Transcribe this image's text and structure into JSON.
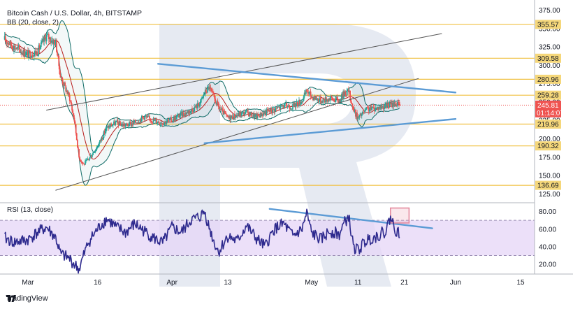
{
  "chart_data": [
    {
      "type": "candlestick",
      "title": "Bitcoin Cash / U.S. Dollar, 4h, BITSTAMP",
      "indicator_label": "BB (20, close, 2)",
      "y_ticks": [
        125.0,
        150.0,
        175.0,
        200.0,
        225.0,
        250.0,
        275.0,
        300.0,
        325.0,
        350.0,
        375.0
      ],
      "ylim": [
        113,
        385
      ],
      "x_ticks": [
        "Mar",
        "16",
        "Apr",
        "13",
        "May",
        "11",
        "21",
        "Jun",
        "15"
      ],
      "levels": [
        355.57,
        309.58,
        280.96,
        259.28,
        219.96,
        190.32,
        136.69
      ],
      "current_price": 245.81,
      "countdown": "01:14:07",
      "trendlines": [
        {
          "name": "channel upper",
          "from": [
            "Mar 5",
            239
          ],
          "to": [
            "May 29",
            343
          ]
        },
        {
          "name": "channel lower",
          "from": [
            "Mar 7",
            130
          ],
          "to": [
            "May 24",
            282
          ]
        },
        {
          "name": "triangle upper",
          "from": [
            "Mar 29",
            302
          ],
          "to": [
            "Jun 1",
            263
          ]
        },
        {
          "name": "triangle lower",
          "from": [
            "Apr 8",
            194
          ],
          "to": [
            "Jun 1",
            227
          ]
        }
      ],
      "close_series": [
        {
          "date": "Feb 25",
          "value": 335
        },
        {
          "date": "Feb 27",
          "value": 325
        },
        {
          "date": "Mar 1",
          "value": 315
        },
        {
          "date": "Mar 3",
          "value": 318
        },
        {
          "date": "Mar 5",
          "value": 340
        },
        {
          "date": "Mar 7",
          "value": 330
        },
        {
          "date": "Mar 8",
          "value": 285
        },
        {
          "date": "Mar 10",
          "value": 255
        },
        {
          "date": "Mar 11",
          "value": 225
        },
        {
          "date": "Mar 12",
          "value": 175
        },
        {
          "date": "Mar 13",
          "value": 165
        },
        {
          "date": "Mar 14",
          "value": 172
        },
        {
          "date": "Mar 16",
          "value": 190
        },
        {
          "date": "Mar 18",
          "value": 215
        },
        {
          "date": "Mar 20",
          "value": 222
        },
        {
          "date": "Mar 22",
          "value": 218
        },
        {
          "date": "Mar 24",
          "value": 222
        },
        {
          "date": "Mar 26",
          "value": 230
        },
        {
          "date": "Mar 28",
          "value": 225
        },
        {
          "date": "Mar 30",
          "value": 222
        },
        {
          "date": "Apr 1",
          "value": 226
        },
        {
          "date": "Apr 3",
          "value": 233
        },
        {
          "date": "Apr 5",
          "value": 238
        },
        {
          "date": "Apr 7",
          "value": 248
        },
        {
          "date": "Apr 8",
          "value": 262
        },
        {
          "date": "Apr 9",
          "value": 270
        },
        {
          "date": "Apr 10",
          "value": 256
        },
        {
          "date": "Apr 11",
          "value": 243
        },
        {
          "date": "Apr 13",
          "value": 228
        },
        {
          "date": "Apr 15",
          "value": 232
        },
        {
          "date": "Apr 17",
          "value": 236
        },
        {
          "date": "Apr 19",
          "value": 230
        },
        {
          "date": "Apr 21",
          "value": 236
        },
        {
          "date": "Apr 23",
          "value": 240
        },
        {
          "date": "Apr 25",
          "value": 245
        },
        {
          "date": "Apr 27",
          "value": 244
        },
        {
          "date": "Apr 29",
          "value": 252
        },
        {
          "date": "Apr 30",
          "value": 265
        },
        {
          "date": "May 1",
          "value": 258
        },
        {
          "date": "May 3",
          "value": 252
        },
        {
          "date": "May 5",
          "value": 255
        },
        {
          "date": "May 7",
          "value": 252
        },
        {
          "date": "May 8",
          "value": 262
        },
        {
          "date": "May 9",
          "value": 265
        },
        {
          "date": "May 10",
          "value": 240
        },
        {
          "date": "May 11",
          "value": 228
        },
        {
          "date": "May 13",
          "value": 240
        },
        {
          "date": "May 15",
          "value": 242
        },
        {
          "date": "May 17",
          "value": 245
        },
        {
          "date": "May 19",
          "value": 248
        },
        {
          "date": "May 20",
          "value": 245.81
        }
      ]
    },
    {
      "type": "line",
      "title": "RSI (13, close)",
      "y_ticks": [
        20.0,
        40.0,
        60.0,
        80.0
      ],
      "ylim": [
        9,
        90
      ],
      "bands": [
        30,
        70
      ],
      "trendline": {
        "from": [
          "Apr 22",
          83
        ],
        "to": [
          "May 27",
          61
        ]
      },
      "highlight": {
        "from": "May 18",
        "to": "May 22",
        "low": 67,
        "high": 84
      },
      "series": [
        {
          "date": "Feb 25",
          "value": 50
        },
        {
          "date": "Feb 27",
          "value": 45
        },
        {
          "date": "Mar 1",
          "value": 48
        },
        {
          "date": "Mar 3",
          "value": 56
        },
        {
          "date": "Mar 5",
          "value": 62
        },
        {
          "date": "Mar 7",
          "value": 50
        },
        {
          "date": "Mar 8",
          "value": 32
        },
        {
          "date": "Mar 10",
          "value": 26
        },
        {
          "date": "Mar 11",
          "value": 20
        },
        {
          "date": "Mar 12",
          "value": 14
        },
        {
          "date": "Mar 13",
          "value": 30
        },
        {
          "date": "Mar 14",
          "value": 45
        },
        {
          "date": "Mar 16",
          "value": 60
        },
        {
          "date": "Mar 18",
          "value": 72
        },
        {
          "date": "Mar 20",
          "value": 62
        },
        {
          "date": "Mar 22",
          "value": 56
        },
        {
          "date": "Mar 24",
          "value": 66
        },
        {
          "date": "Mar 26",
          "value": 58
        },
        {
          "date": "Mar 28",
          "value": 50
        },
        {
          "date": "Mar 30",
          "value": 44
        },
        {
          "date": "Apr 1",
          "value": 62
        },
        {
          "date": "Apr 3",
          "value": 56
        },
        {
          "date": "Apr 5",
          "value": 70
        },
        {
          "date": "Apr 7",
          "value": 74
        },
        {
          "date": "Apr 8",
          "value": 80
        },
        {
          "date": "Apr 9",
          "value": 62
        },
        {
          "date": "Apr 10",
          "value": 46
        },
        {
          "date": "Apr 11",
          "value": 34
        },
        {
          "date": "Apr 13",
          "value": 52
        },
        {
          "date": "Apr 15",
          "value": 46
        },
        {
          "date": "Apr 17",
          "value": 64
        },
        {
          "date": "Apr 19",
          "value": 50
        },
        {
          "date": "Apr 21",
          "value": 40
        },
        {
          "date": "Apr 23",
          "value": 60
        },
        {
          "date": "Apr 25",
          "value": 66
        },
        {
          "date": "Apr 27",
          "value": 52
        },
        {
          "date": "Apr 29",
          "value": 60
        },
        {
          "date": "Apr 30",
          "value": 78
        },
        {
          "date": "May 1",
          "value": 56
        },
        {
          "date": "May 3",
          "value": 48
        },
        {
          "date": "May 5",
          "value": 58
        },
        {
          "date": "May 7",
          "value": 54
        },
        {
          "date": "May 8",
          "value": 66
        },
        {
          "date": "May 9",
          "value": 75
        },
        {
          "date": "May 10",
          "value": 40
        },
        {
          "date": "May 11",
          "value": 36
        },
        {
          "date": "May 13",
          "value": 48
        },
        {
          "date": "May 15",
          "value": 52
        },
        {
          "date": "May 17",
          "value": 58
        },
        {
          "date": "May 18",
          "value": 74
        },
        {
          "date": "May 19",
          "value": 60
        },
        {
          "date": "May 20",
          "value": 54
        }
      ]
    }
  ],
  "colors": {
    "candle_up": "#26a69a",
    "candle_down": "#ef5350",
    "bb_basis": "#b71c1c",
    "bb_band": "#0f6b66",
    "level_line": "#f0c040",
    "level_label_bg": "#f5d77a",
    "trend_blue": "#5b9bd5",
    "trend_gray": "#555555",
    "price_red": "#ef5350",
    "rsi_line": "#2e2a8e",
    "rsi_band_fill": "#e6d5f7",
    "highlight_box": "#e48a9e",
    "watermark": "#c7d1e3"
  },
  "branding": {
    "name": "TradingView",
    "icon": "tradingview-logo-icon"
  }
}
